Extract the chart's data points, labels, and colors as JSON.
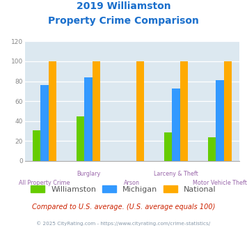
{
  "title_line1": "2019 Williamston",
  "title_line2": "Property Crime Comparison",
  "categories": [
    "All Property Crime",
    "Burglary",
    "Arson",
    "Larceny & Theft",
    "Motor Vehicle Theft"
  ],
  "cat_labels_upper": [
    false,
    true,
    false,
    true,
    false
  ],
  "series": {
    "Williamston": [
      31,
      45,
      0,
      29,
      24
    ],
    "Michigan": [
      76,
      84,
      0,
      73,
      81
    ],
    "National": [
      100,
      100,
      100,
      100,
      100
    ]
  },
  "colors": {
    "Williamston": "#66cc00",
    "Michigan": "#3399ff",
    "National": "#ffaa00"
  },
  "ylim": [
    0,
    120
  ],
  "yticks": [
    0,
    20,
    40,
    60,
    80,
    100,
    120
  ],
  "background_color": "#dce8f0",
  "title_color": "#1a6fcc",
  "xlabel_color": "#9966aa",
  "ytick_color": "#888888",
  "legend_text_color": "#555555",
  "footer_text": "Compared to U.S. average. (U.S. average equals 100)",
  "footer_color": "#cc2200",
  "credit_text": "© 2025 CityRating.com - https://www.cityrating.com/crime-statistics/",
  "credit_color": "#8899aa",
  "bar_width": 0.18,
  "x_positions": [
    0,
    1,
    2,
    3,
    4
  ]
}
